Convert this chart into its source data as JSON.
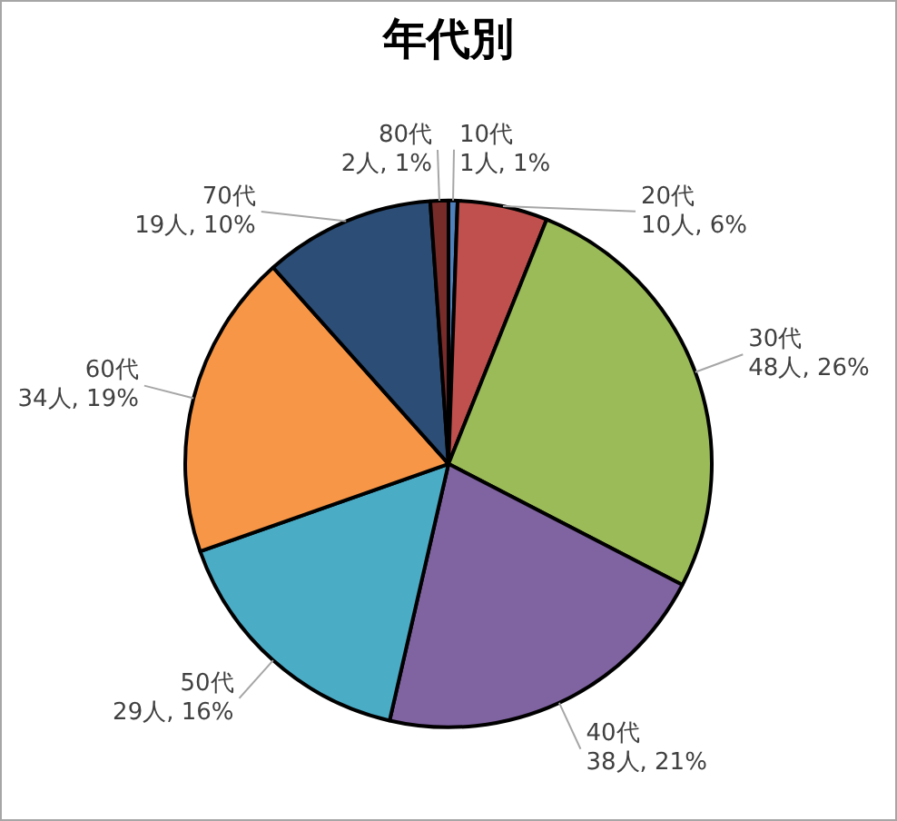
{
  "chart_data": {
    "type": "pie",
    "title": "年代別",
    "categories": [
      "10代",
      "20代",
      "30代",
      "40代",
      "50代",
      "60代",
      "70代",
      "80代"
    ],
    "values": [
      1,
      10,
      48,
      38,
      29,
      34,
      19,
      2
    ],
    "value_labels": [
      "1人, 1%",
      "10人, 6%",
      "48人, 26%",
      "38人, 21%",
      "29人, 16%",
      "34人, 19%",
      "19人, 10%",
      "2人, 1%"
    ],
    "colors": [
      "#4f81bd",
      "#c0504d",
      "#9bbb59",
      "#8064a2",
      "#4bacc6",
      "#f79646",
      "#2c4d75",
      "#772c2a"
    ],
    "legend": false
  }
}
